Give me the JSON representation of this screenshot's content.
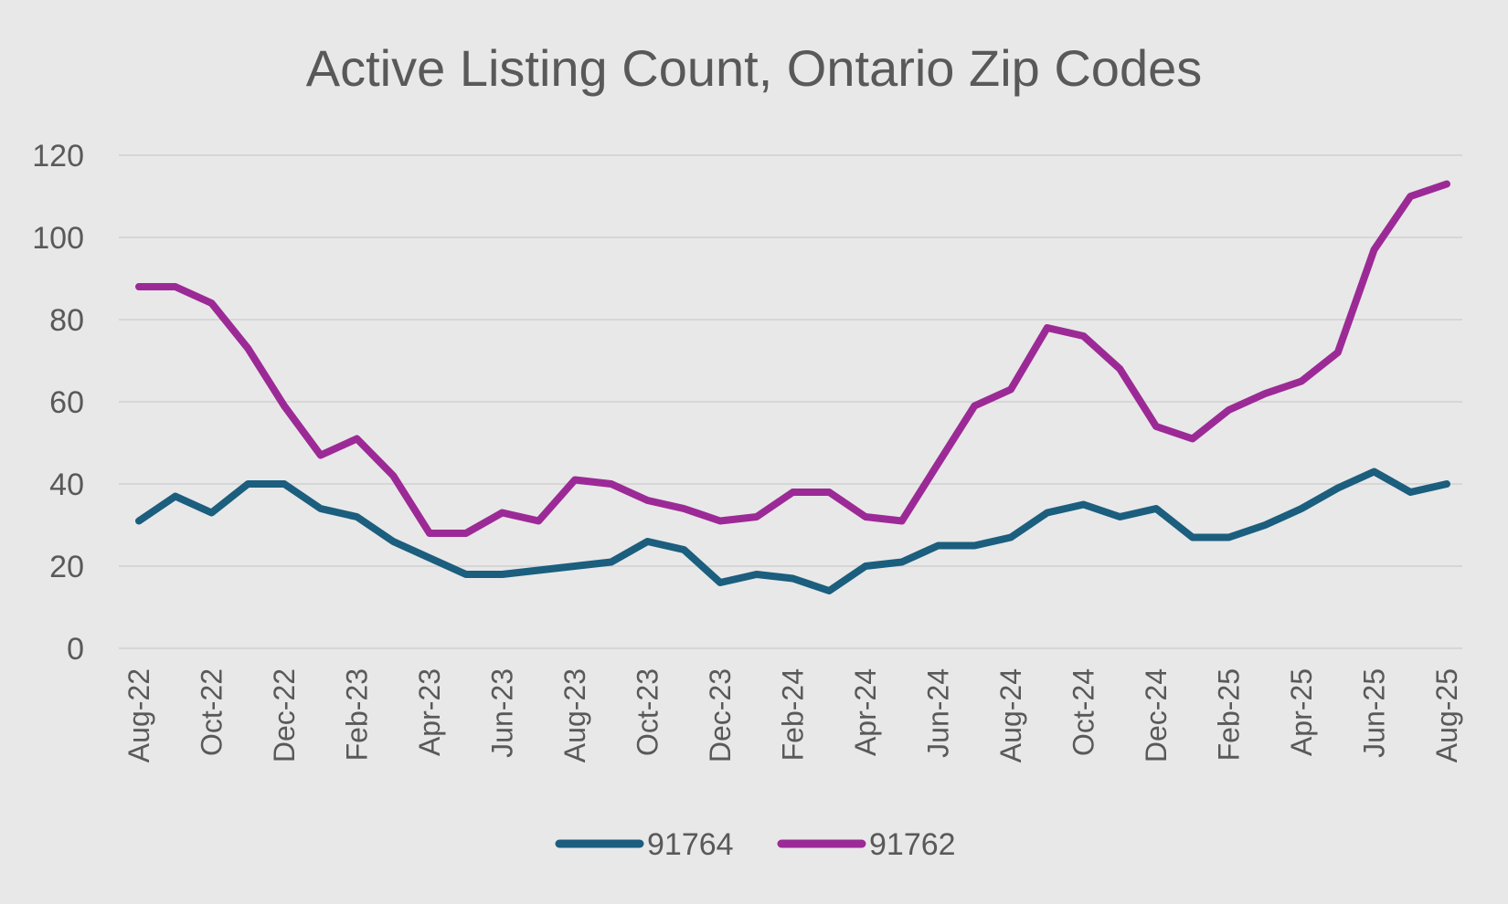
{
  "chart_data": {
    "type": "line",
    "title": "Active Listing Count, Ontario Zip Codes",
    "xlabel": "",
    "ylabel": "",
    "ylim": [
      0,
      120
    ],
    "yticks": [
      0,
      20,
      40,
      60,
      80,
      100,
      120
    ],
    "grid": true,
    "legend_position": "bottom",
    "x": [
      "Aug-22",
      "Sep-22",
      "Oct-22",
      "Nov-22",
      "Dec-22",
      "Jan-23",
      "Feb-23",
      "Mar-23",
      "Apr-23",
      "May-23",
      "Jun-23",
      "Jul-23",
      "Aug-23",
      "Sep-23",
      "Oct-23",
      "Nov-23",
      "Dec-23",
      "Jan-24",
      "Feb-24",
      "Mar-24",
      "Apr-24",
      "May-24",
      "Jun-24",
      "Jul-24",
      "Aug-24",
      "Sep-24",
      "Oct-24",
      "Nov-24",
      "Dec-24",
      "Jan-25",
      "Feb-25",
      "Mar-25",
      "Apr-25",
      "May-25",
      "Jun-25",
      "Jul-25",
      "Aug-25"
    ],
    "x_tick_labels": [
      "Aug-22",
      "",
      "Oct-22",
      "",
      "Dec-22",
      "",
      "Feb-23",
      "",
      "Apr-23",
      "",
      "Jun-23",
      "",
      "Aug-23",
      "",
      "Oct-23",
      "",
      "Dec-23",
      "",
      "Feb-24",
      "",
      "Apr-24",
      "",
      "Jun-24",
      "",
      "Aug-24",
      "",
      "Oct-24",
      "",
      "Dec-24",
      "",
      "Feb-25",
      "",
      "Apr-25",
      "",
      "Jun-25",
      "",
      "Aug-25"
    ],
    "series": [
      {
        "name": "91764",
        "color": "#1b5e7e",
        "values": [
          31,
          37,
          33,
          40,
          40,
          34,
          32,
          26,
          22,
          18,
          18,
          19,
          20,
          21,
          26,
          24,
          16,
          18,
          17,
          14,
          20,
          21,
          25,
          25,
          27,
          33,
          35,
          32,
          34,
          27,
          27,
          30,
          34,
          39,
          43,
          38,
          40
        ]
      },
      {
        "name": "91762",
        "color": "#9c2a96",
        "values": [
          88,
          88,
          84,
          73,
          59,
          47,
          51,
          42,
          28,
          28,
          33,
          31,
          41,
          40,
          36,
          34,
          31,
          32,
          38,
          38,
          32,
          31,
          45,
          59,
          63,
          78,
          76,
          68,
          54,
          51,
          58,
          62,
          65,
          72,
          97,
          110,
          113
        ]
      }
    ]
  }
}
